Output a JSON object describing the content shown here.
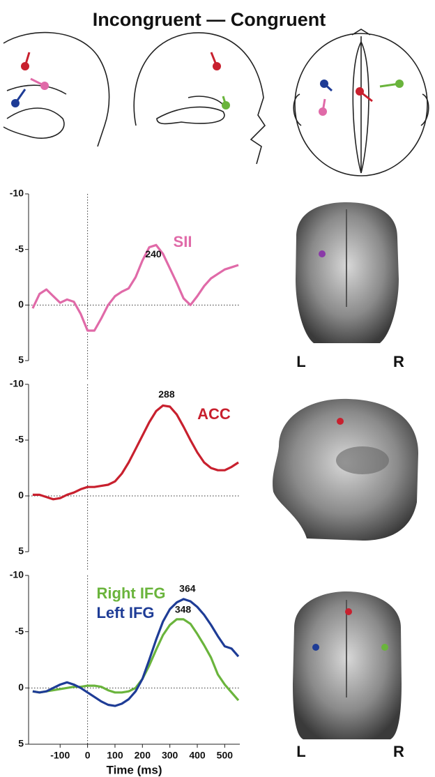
{
  "title": "Incongruent — Congruent",
  "brain_labels": {
    "left": "L",
    "right": "R"
  },
  "chart_data": [
    {
      "type": "line",
      "xlim": [
        -215,
        555
      ],
      "ylim": [
        5,
        -10
      ],
      "yticks": [
        -10,
        -5,
        0,
        5
      ],
      "x": [
        -200,
        -175,
        -150,
        -125,
        -100,
        -75,
        -50,
        -25,
        0,
        25,
        50,
        75,
        100,
        125,
        150,
        175,
        200,
        225,
        250,
        275,
        300,
        325,
        350,
        375,
        400,
        425,
        450,
        475,
        500,
        525,
        550
      ],
      "series": [
        {
          "name": "SII",
          "color": "#e06aa8",
          "values": [
            0.3,
            -1.0,
            -1.4,
            -0.8,
            -0.2,
            -0.5,
            -0.3,
            0.8,
            2.3,
            2.3,
            1.2,
            0,
            -0.8,
            -1.2,
            -1.5,
            -2.5,
            -4,
            -5.2,
            -5.4,
            -4.6,
            -3.3,
            -2,
            -0.6,
            0,
            -0.8,
            -1.7,
            -2.4,
            -2.8,
            -3.2,
            -3.4,
            -3.6
          ]
        }
      ],
      "annotations": [
        {
          "label": "240",
          "x": 240,
          "y": -5.4
        }
      ]
    },
    {
      "type": "line",
      "xlim": [
        -215,
        555
      ],
      "ylim": [
        5,
        -10
      ],
      "yticks": [
        -10,
        -5,
        0,
        5
      ],
      "x": [
        -200,
        -175,
        -150,
        -125,
        -100,
        -75,
        -50,
        -25,
        0,
        25,
        50,
        75,
        100,
        125,
        150,
        175,
        200,
        225,
        250,
        275,
        300,
        325,
        350,
        375,
        400,
        425,
        450,
        475,
        500,
        525,
        550
      ],
      "series": [
        {
          "name": "ACC",
          "color": "#c8202e",
          "values": [
            -0.1,
            -0.1,
            0.1,
            0.3,
            0.2,
            -0.1,
            -0.3,
            -0.6,
            -0.8,
            -0.8,
            -0.9,
            -1.0,
            -1.3,
            -2,
            -3,
            -4.2,
            -5.4,
            -6.6,
            -7.6,
            -8.1,
            -8,
            -7.3,
            -6.2,
            -5,
            -3.9,
            -3,
            -2.5,
            -2.3,
            -2.3,
            -2.6,
            -3
          ]
        }
      ],
      "annotations": [
        {
          "label": "288",
          "x": 288,
          "y": -8.1
        }
      ]
    },
    {
      "type": "line",
      "xlim": [
        -215,
        555
      ],
      "ylim": [
        5,
        -10
      ],
      "yticks": [
        -10,
        -5,
        0,
        5
      ],
      "xticks": [
        -100,
        0,
        100,
        200,
        300,
        400,
        500
      ],
      "xlabel": "Time (ms)",
      "x": [
        -200,
        -175,
        -150,
        -125,
        -100,
        -75,
        -50,
        -25,
        0,
        25,
        50,
        75,
        100,
        125,
        150,
        175,
        200,
        225,
        250,
        275,
        300,
        325,
        350,
        375,
        400,
        425,
        450,
        475,
        500,
        525,
        550
      ],
      "series": [
        {
          "name": "Right IFG",
          "color": "#6ab43c",
          "values": [
            0.3,
            0.4,
            0.3,
            0.2,
            0.1,
            0,
            -0.1,
            -0.1,
            -0.2,
            -0.2,
            -0.1,
            0.2,
            0.4,
            0.4,
            0.3,
            0,
            -0.8,
            -2,
            -3.4,
            -4.7,
            -5.6,
            -6.1,
            -6.1,
            -5.7,
            -4.8,
            -3.8,
            -2.7,
            -1.2,
            -0.3,
            0.4,
            1.1
          ]
        },
        {
          "name": "Left IFG",
          "color": "#1e3c96",
          "values": [
            0.3,
            0.4,
            0.3,
            0,
            -0.3,
            -0.5,
            -0.3,
            0,
            0.4,
            0.8,
            1.2,
            1.5,
            1.6,
            1.4,
            1.0,
            0.3,
            -0.8,
            -2.5,
            -4.3,
            -5.9,
            -7.0,
            -7.6,
            -7.9,
            -7.7,
            -7.2,
            -6.5,
            -5.6,
            -4.6,
            -3.7,
            -3.5,
            -2.8
          ]
        }
      ],
      "annotations": [
        {
          "label": "364",
          "x": 364,
          "y": -7.9
        },
        {
          "label": "348",
          "x": 348,
          "y": -6.1
        }
      ]
    }
  ]
}
